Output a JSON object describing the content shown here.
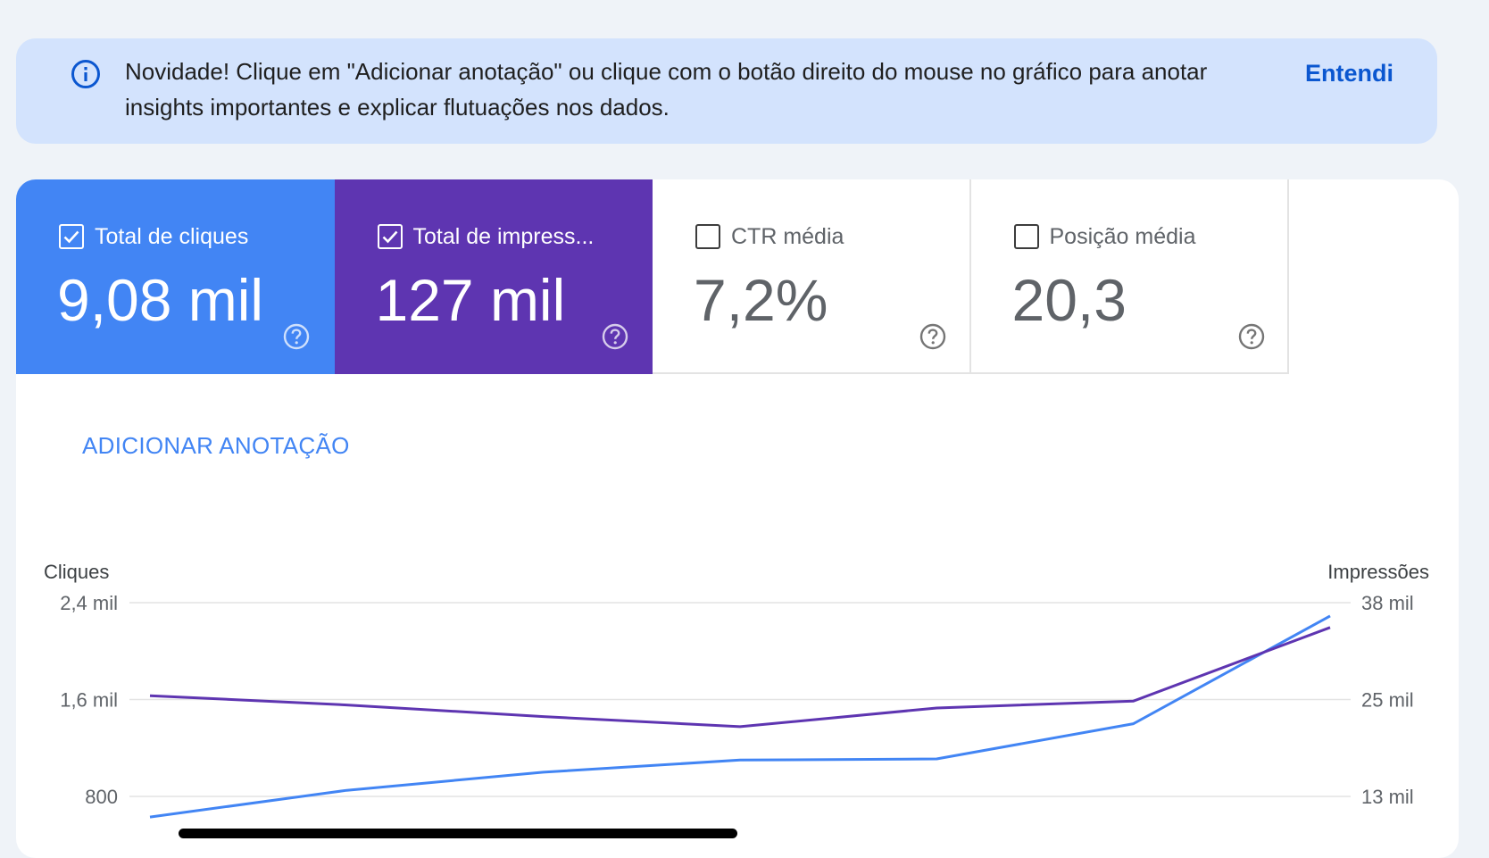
{
  "banner": {
    "text": "Novidade! Clique em \"Adicionar anotação\" ou clique com o botão direito do mouse no gráfico para anotar insights importantes e explicar flutuações nos dados.",
    "action_label": "Entendi",
    "icon": "info-icon"
  },
  "metrics": [
    {
      "label": "Total de cliques",
      "value": "9,08 mil",
      "checked": true,
      "color": "#4285f4"
    },
    {
      "label": "Total de impress...",
      "value": "127 mil",
      "checked": true,
      "color": "#5e35b1"
    },
    {
      "label": "CTR média",
      "value": "7,2%",
      "checked": false
    },
    {
      "label": "Posição média",
      "value": "20,3",
      "checked": false
    }
  ],
  "add_annotation_label": "ADICIONAR ANOTAÇÃO",
  "chart_data": {
    "type": "line",
    "y_left_title": "Cliques",
    "y_right_title": "Impressões",
    "y_left_ticks": [
      "2,4 mil",
      "1,6 mil",
      "800"
    ],
    "y_right_ticks": [
      "38 mil",
      "25 mil",
      "13 mil"
    ],
    "y_left_range": [
      800,
      2400
    ],
    "y_right_range": [
      13000,
      38000
    ],
    "grid": true,
    "series": [
      {
        "name": "Cliques",
        "axis": "left",
        "color": "#4285f4",
        "values": [
          630,
          850,
          1000,
          1100,
          1110,
          1400,
          2290
        ]
      },
      {
        "name": "Impressões",
        "axis": "right",
        "color": "#5e35b1",
        "values": [
          26000,
          24800,
          23300,
          22000,
          24400,
          25300,
          34800
        ]
      }
    ]
  }
}
